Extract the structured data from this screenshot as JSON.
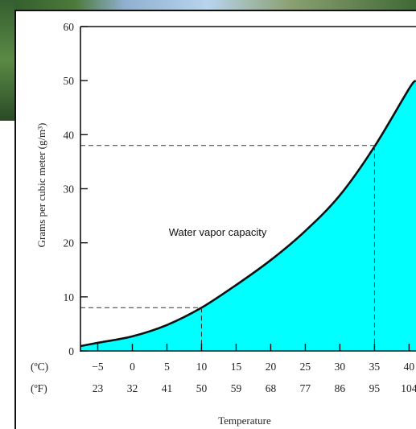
{
  "chart_data": {
    "type": "area",
    "title": "",
    "xlabel": "Temperature",
    "ylabel": "Grams per cubic meter (g/m³)",
    "xlim": [
      -7.5,
      41
    ],
    "ylim": [
      0,
      60
    ],
    "x_ticks": [
      -5,
      0,
      5,
      10,
      15,
      20,
      25,
      30,
      35,
      40
    ],
    "y_ticks": [
      0,
      10,
      20,
      30,
      40,
      50,
      60
    ],
    "celsius_label": "(ºC)",
    "fahrenheit_label": "(ºF)",
    "celsius_ticks": [
      "−5",
      "0",
      "5",
      "10",
      "15",
      "20",
      "25",
      "30",
      "35",
      "40"
    ],
    "fahrenheit_ticks": [
      "23",
      "32",
      "41",
      "50",
      "59",
      "68",
      "77",
      "86",
      "95",
      "104"
    ],
    "fill_color": "#00ffff",
    "series": [
      {
        "name": "",
        "x": [
          -7.5,
          -5,
          0,
          5,
          10,
          15,
          20,
          25,
          30,
          35,
          40,
          41
        ],
        "y": [
          0.9,
          1.5,
          2.7,
          4.8,
          8.0,
          12.2,
          16.8,
          22.2,
          28.8,
          37.8,
          48.5,
          50.0
        ]
      }
    ],
    "annotations": [
      {
        "text": "Water vapor capacity",
        "x": 15.5,
        "y": 22.0
      },
      {
        "type": "guide",
        "x": 10,
        "y": 8.0
      },
      {
        "type": "guide",
        "x": 35,
        "y": 38.0
      }
    ],
    "grid": false
  }
}
